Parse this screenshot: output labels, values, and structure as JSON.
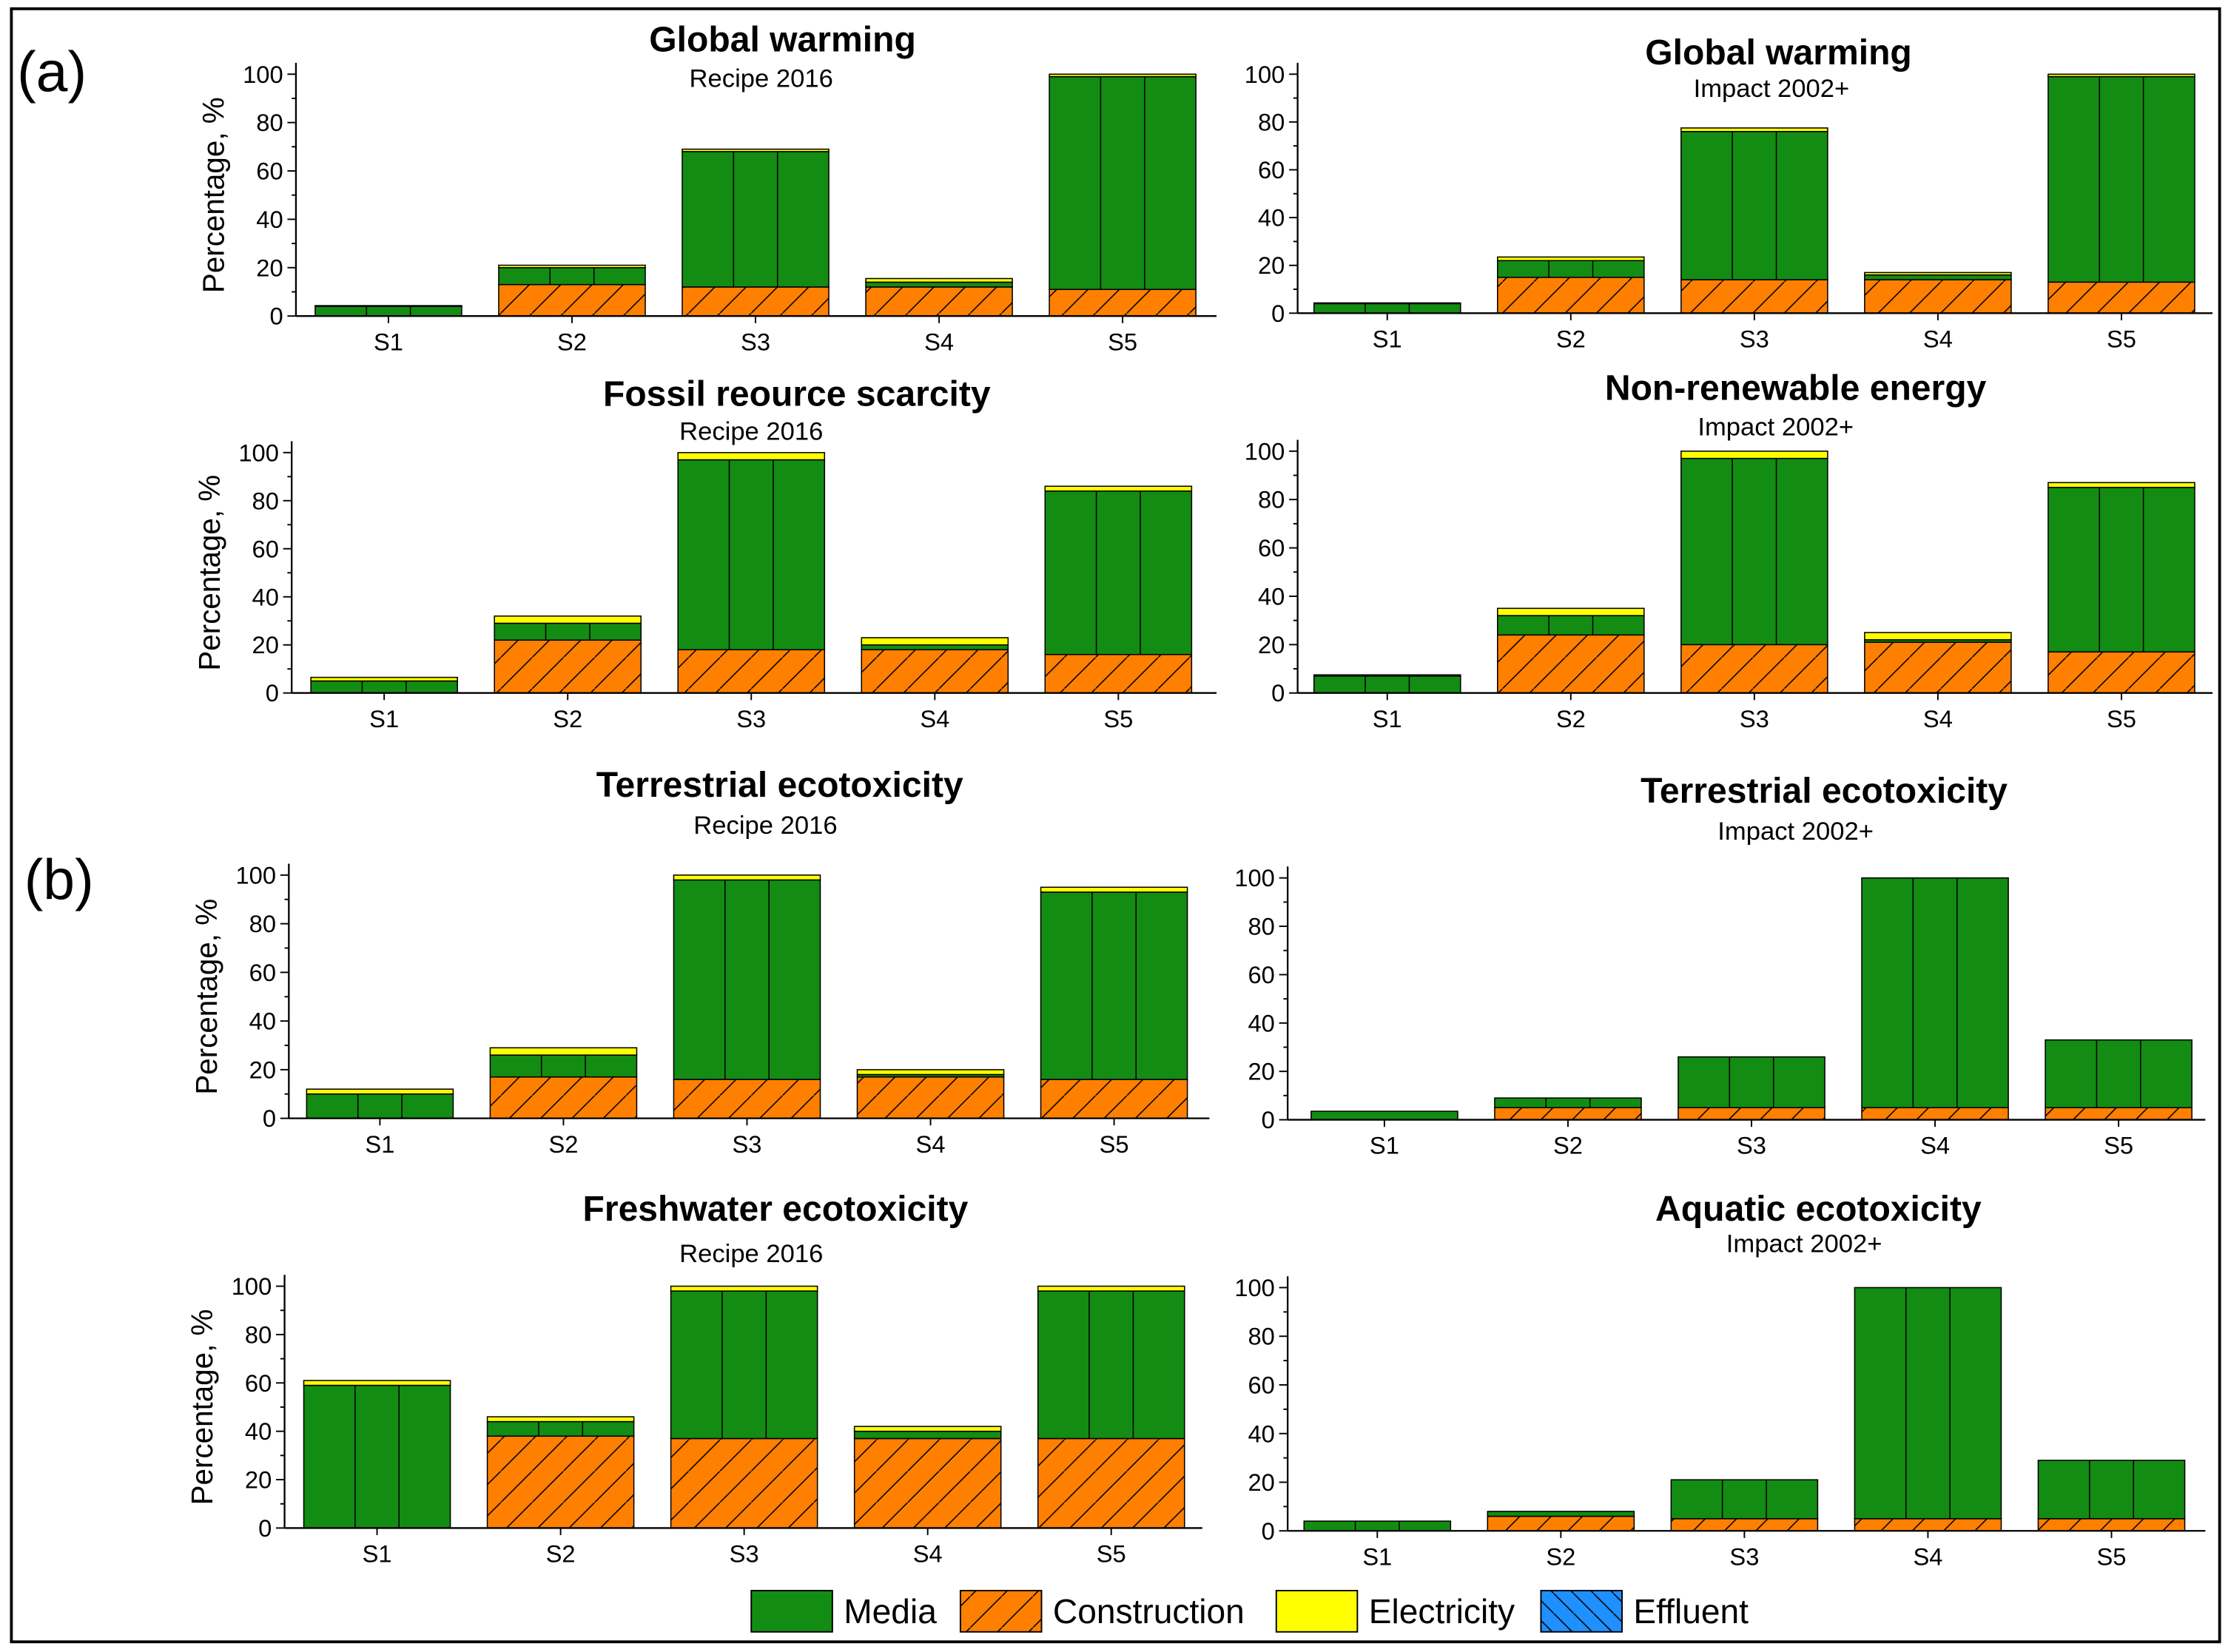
{
  "colors": {
    "Media": "#138c13",
    "Construction": "#ff8000",
    "Electricity": "#ffff00",
    "Effluent": "#1e90ff"
  },
  "panel_labels": [
    "(a)",
    "(b)"
  ],
  "legend": [
    "Media",
    "Construction",
    "Electricity",
    "Effluent"
  ],
  "chart_data": [
    {
      "type": "bar",
      "stacked": true,
      "title": "Global warming",
      "subtitle": "Recipe 2016",
      "ylabel": "Percentage, %",
      "ylim": [
        0,
        100
      ],
      "yticks": [
        0,
        20,
        40,
        60,
        80,
        100
      ],
      "categories": [
        "S1",
        "S2",
        "S3",
        "S4",
        "S5"
      ],
      "series": [
        {
          "name": "Construction",
          "values": [
            0,
            13,
            12,
            12,
            11
          ]
        },
        {
          "name": "Media",
          "values": [
            4,
            7,
            56,
            2,
            88
          ]
        },
        {
          "name": "Electricity",
          "values": [
            0.3,
            1,
            1,
            1.5,
            1
          ]
        },
        {
          "name": "Effluent",
          "values": [
            0,
            0,
            0,
            0,
            0
          ]
        }
      ]
    },
    {
      "type": "bar",
      "stacked": true,
      "title": "Global warming",
      "subtitle": "Impact 2002+",
      "ylabel": "",
      "ylim": [
        0,
        100
      ],
      "yticks": [
        0,
        20,
        40,
        60,
        80,
        100
      ],
      "categories": [
        "S1",
        "S2",
        "S3",
        "S4",
        "S5"
      ],
      "series": [
        {
          "name": "Construction",
          "values": [
            0,
            15,
            14,
            14,
            13
          ]
        },
        {
          "name": "Media",
          "values": [
            4,
            7,
            62,
            2,
            86
          ]
        },
        {
          "name": "Electricity",
          "values": [
            0.3,
            1.5,
            1.5,
            1,
            1
          ]
        },
        {
          "name": "Effluent",
          "values": [
            0,
            0,
            0,
            0,
            0
          ]
        }
      ]
    },
    {
      "type": "bar",
      "stacked": true,
      "title": "Fossil reource scarcity",
      "subtitle": "Recipe 2016",
      "ylabel": "Percentage, %",
      "ylim": [
        0,
        100
      ],
      "yticks": [
        0,
        20,
        40,
        60,
        80,
        100
      ],
      "categories": [
        "S1",
        "S2",
        "S3",
        "S4",
        "S5"
      ],
      "series": [
        {
          "name": "Construction",
          "values": [
            0,
            22,
            18,
            18,
            16
          ]
        },
        {
          "name": "Media",
          "values": [
            5,
            7,
            79,
            2,
            68
          ]
        },
        {
          "name": "Electricity",
          "values": [
            1.5,
            3,
            3,
            3,
            2
          ]
        },
        {
          "name": "Effluent",
          "values": [
            0,
            0,
            0,
            0,
            0
          ]
        }
      ]
    },
    {
      "type": "bar",
      "stacked": true,
      "title": "Non-renewable energy",
      "subtitle": "Impact 2002+",
      "ylabel": "",
      "ylim": [
        0,
        100
      ],
      "yticks": [
        0,
        20,
        40,
        60,
        80,
        100
      ],
      "categories": [
        "S1",
        "S2",
        "S3",
        "S4",
        "S5"
      ],
      "series": [
        {
          "name": "Construction",
          "values": [
            0,
            24,
            20,
            21,
            17
          ]
        },
        {
          "name": "Media",
          "values": [
            7,
            8,
            77,
            1,
            68
          ]
        },
        {
          "name": "Electricity",
          "values": [
            0.5,
            3,
            3,
            3,
            2
          ]
        },
        {
          "name": "Effluent",
          "values": [
            0,
            0,
            0,
            0,
            0
          ]
        }
      ]
    },
    {
      "type": "bar",
      "stacked": true,
      "title": "Terrestrial ecotoxicity",
      "subtitle": "Recipe 2016",
      "ylabel": "Percentage, %",
      "ylim": [
        0,
        100
      ],
      "yticks": [
        0,
        20,
        40,
        60,
        80,
        100
      ],
      "categories": [
        "S1",
        "S2",
        "S3",
        "S4",
        "S5"
      ],
      "series": [
        {
          "name": "Construction",
          "values": [
            0,
            17,
            16,
            17,
            16
          ]
        },
        {
          "name": "Media",
          "values": [
            10,
            9,
            82,
            1,
            77
          ]
        },
        {
          "name": "Electricity",
          "values": [
            2,
            3,
            2,
            2,
            2
          ]
        },
        {
          "name": "Effluent",
          "values": [
            0,
            0,
            0,
            0,
            0
          ]
        }
      ]
    },
    {
      "type": "bar",
      "stacked": true,
      "title": "Terrestrial ecotoxicity",
      "subtitle": "Impact 2002+",
      "ylabel": "",
      "ylim": [
        0,
        100
      ],
      "yticks": [
        0,
        20,
        40,
        60,
        80,
        100
      ],
      "categories": [
        "S1",
        "S2",
        "S3",
        "S4",
        "S5"
      ],
      "series": [
        {
          "name": "Construction",
          "values": [
            0,
            5,
            5,
            5,
            5
          ]
        },
        {
          "name": "Media",
          "values": [
            3.5,
            4,
            21,
            95,
            28
          ]
        },
        {
          "name": "Electricity",
          "values": [
            0,
            0,
            0,
            0,
            0
          ]
        },
        {
          "name": "Effluent",
          "values": [
            0,
            0,
            0,
            0,
            0
          ]
        }
      ]
    },
    {
      "type": "bar",
      "stacked": true,
      "title": "Freshwater ecotoxicity",
      "subtitle": "Recipe 2016",
      "ylabel": "Percentage, %",
      "ylim": [
        0,
        100
      ],
      "yticks": [
        0,
        20,
        40,
        60,
        80,
        100
      ],
      "categories": [
        "S1",
        "S2",
        "S3",
        "S4",
        "S5"
      ],
      "series": [
        {
          "name": "Construction",
          "values": [
            0,
            38,
            37,
            37,
            37
          ]
        },
        {
          "name": "Media",
          "values": [
            59,
            6,
            61,
            3,
            61
          ]
        },
        {
          "name": "Electricity",
          "values": [
            2,
            2,
            2,
            2,
            2
          ]
        },
        {
          "name": "Effluent",
          "values": [
            0,
            0,
            0,
            0,
            0
          ]
        }
      ]
    },
    {
      "type": "bar",
      "stacked": true,
      "title": "Aquatic ecotoxicity",
      "subtitle": "Impact 2002+",
      "ylabel": "",
      "ylim": [
        0,
        100
      ],
      "yticks": [
        0,
        20,
        40,
        60,
        80,
        100
      ],
      "categories": [
        "S1",
        "S2",
        "S3",
        "S4",
        "S5"
      ],
      "series": [
        {
          "name": "Construction",
          "values": [
            0,
            6,
            5,
            5,
            5
          ]
        },
        {
          "name": "Media",
          "values": [
            4,
            2,
            16,
            95,
            24
          ]
        },
        {
          "name": "Electricity",
          "values": [
            0,
            0,
            0,
            0,
            0
          ]
        },
        {
          "name": "Effluent",
          "values": [
            0,
            0,
            0,
            0,
            0
          ]
        }
      ]
    }
  ]
}
